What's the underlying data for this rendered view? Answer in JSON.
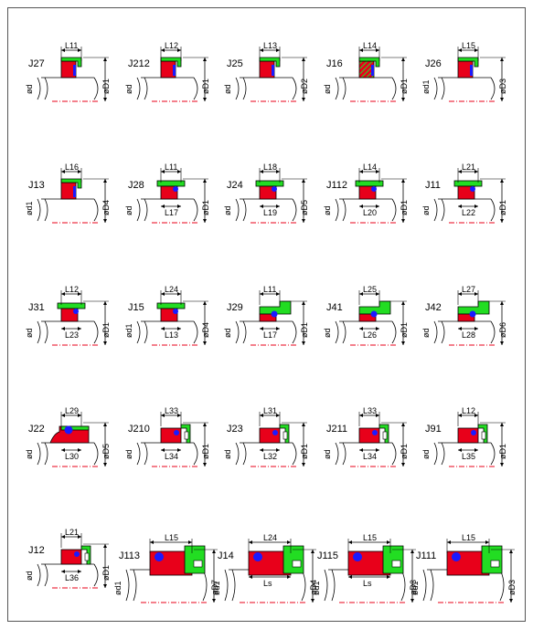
{
  "colors": {
    "seal_red": "#e8001a",
    "seal_green": "#22dd22",
    "seal_blue": "#1a1aff",
    "axis": "#e8001a",
    "line": "#000000"
  },
  "rows": [
    [
      {
        "name": "J27",
        "top": "L11",
        "bottom": "",
        "left": "ød",
        "right": "øD1",
        "variant": "rect"
      },
      {
        "name": "J212",
        "top": "L12",
        "bottom": "",
        "left": "ød",
        "right": "øD1",
        "variant": "rect"
      },
      {
        "name": "J25",
        "top": "L13",
        "bottom": "",
        "left": "ød",
        "right": "øD2",
        "variant": "rect"
      },
      {
        "name": "J16",
        "top": "L14",
        "bottom": "",
        "left": "ød",
        "right": "øD1",
        "variant": "hatch"
      },
      {
        "name": "J26",
        "top": "L15",
        "bottom": "",
        "left": "ød1",
        "right": "øD3",
        "variant": "rect"
      }
    ],
    [
      {
        "name": "J13",
        "top": "L16",
        "bottom": "",
        "left": "ød1",
        "right": "øD4",
        "variant": "rect"
      },
      {
        "name": "J28",
        "top": "L11",
        "bottom": "L17",
        "left": "ød",
        "right": "øD1",
        "variant": "bar"
      },
      {
        "name": "J24",
        "top": "L18",
        "bottom": "L19",
        "left": "ød",
        "right": "øD5",
        "variant": "bar"
      },
      {
        "name": "J112",
        "top": "L14",
        "bottom": "L20",
        "left": "ød",
        "right": "øD1",
        "variant": "bar"
      },
      {
        "name": "J11",
        "top": "L21",
        "bottom": "L22",
        "left": "ød",
        "right": "øD1",
        "variant": "bar"
      }
    ],
    [
      {
        "name": "J31",
        "top": "L12",
        "bottom": "L23",
        "left": "ød",
        "right": "øD1",
        "variant": "bar"
      },
      {
        "name": "J15",
        "top": "L24",
        "bottom": "L13",
        "left": "ød1",
        "right": "øD4",
        "variant": "bar"
      },
      {
        "name": "J29",
        "top": "L11",
        "bottom": "L17",
        "left": "ød",
        "right": "øD1",
        "variant": "flag"
      },
      {
        "name": "J41",
        "top": "L25",
        "bottom": "L26",
        "left": "ød",
        "right": "øD1",
        "variant": "flag"
      },
      {
        "name": "J42",
        "top": "L27",
        "bottom": "L28",
        "left": "ød",
        "right": "øD6",
        "variant": "flag"
      }
    ],
    [
      {
        "name": "J22",
        "top": "L29",
        "bottom": "L30",
        "left": "ød",
        "right": "øD5",
        "variant": "dome"
      },
      {
        "name": "J210",
        "top": "L33",
        "bottom": "L34",
        "left": "ød",
        "right": "øD1",
        "variant": "ring"
      },
      {
        "name": "J23",
        "top": "L31",
        "bottom": "L32",
        "left": "ød",
        "right": "øD1",
        "variant": "ring"
      },
      {
        "name": "J211",
        "top": "L33",
        "bottom": "L34",
        "left": "ød",
        "right": "øD1",
        "variant": "ring"
      },
      {
        "name": "J91",
        "top": "L12",
        "bottom": "L35",
        "left": "ød",
        "right": "øD1",
        "variant": "ring"
      }
    ],
    [
      {
        "name": "J12",
        "top": "L21",
        "bottom": "L36",
        "left": "ød",
        "right": "øD1",
        "variant": "small"
      },
      {
        "name": "J113",
        "top": "L15",
        "bottom": "",
        "left": "ød1",
        "right": "øD7",
        "variant": "large"
      },
      {
        "name": "J14",
        "top": "L24",
        "bottom": "Ls",
        "left": "ød1",
        "right": "øD4",
        "variant": "large"
      },
      {
        "name": "J115",
        "top": "L15",
        "bottom": "Ls",
        "left": "ød1",
        "right": "øD3",
        "variant": "large"
      },
      {
        "name": "J111",
        "top": "L15",
        "bottom": "",
        "left": "ød1",
        "right": "øD3",
        "variant": "large"
      }
    ]
  ]
}
